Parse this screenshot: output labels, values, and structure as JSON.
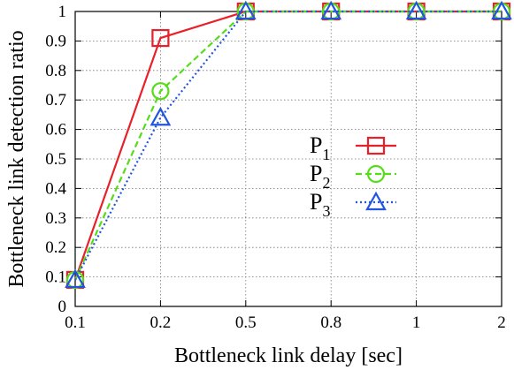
{
  "chart_data": {
    "type": "line",
    "title": "",
    "xlabel": "Bottleneck link delay [sec]",
    "ylabel": "Bottleneck link detection ratio",
    "categories": [
      "0.1",
      "0.2",
      "0.5",
      "0.8",
      "1",
      "2"
    ],
    "ylim": [
      0,
      1
    ],
    "yticks": [
      "0",
      "0.1",
      "0.2",
      "0.3",
      "0.4",
      "0.5",
      "0.6",
      "0.7",
      "0.8",
      "0.9",
      "1"
    ],
    "grid": true,
    "legend_position": "right",
    "series": [
      {
        "name": "P",
        "sub": "1",
        "color": "#e8202a",
        "dash": "solid",
        "marker": "square",
        "values": [
          0.09,
          0.91,
          1.0,
          1.0,
          1.0,
          1.0
        ]
      },
      {
        "name": "P",
        "sub": "2",
        "color": "#55dd1a",
        "dash": "dashed",
        "marker": "circle",
        "values": [
          0.09,
          0.73,
          1.0,
          1.0,
          1.0,
          1.0
        ]
      },
      {
        "name": "P",
        "sub": "3",
        "color": "#2255dd",
        "dash": "dotted",
        "marker": "triangle",
        "values": [
          0.09,
          0.64,
          1.0,
          1.0,
          1.0,
          1.0
        ]
      }
    ]
  }
}
